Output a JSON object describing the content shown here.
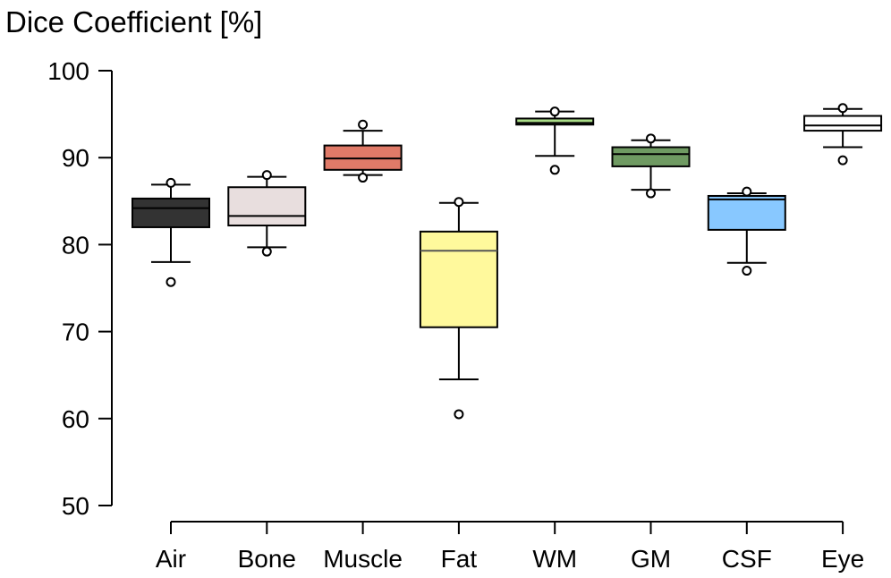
{
  "chart_data": {
    "type": "box",
    "title": "Dice Coefficient [%]",
    "xlabel": "",
    "ylabel": "",
    "ylim": [
      50,
      100
    ],
    "yticks": [
      50,
      60,
      70,
      80,
      90,
      100
    ],
    "grid": false,
    "legend": "none",
    "categories": [
      "Air",
      "Bone",
      "Muscle",
      "Fat",
      "WM",
      "GM",
      "CSF",
      "Eye"
    ],
    "boxes": [
      {
        "label": "Air",
        "color": "#333333",
        "median_color": "#000000",
        "whisker_low": 78.0,
        "q1": 82.0,
        "median": 84.2,
        "q3": 85.3,
        "whisker_high": 86.9,
        "outliers": [
          75.7,
          87.1
        ]
      },
      {
        "label": "Bone",
        "color": "#e8dede",
        "median_color": "#000000",
        "whisker_low": 79.7,
        "q1": 82.2,
        "median": 83.3,
        "q3": 86.6,
        "whisker_high": 87.8,
        "outliers": [
          79.2,
          88.0
        ]
      },
      {
        "label": "Muscle",
        "color": "#e07a68",
        "median_color": "#000000",
        "whisker_low": 88.0,
        "q1": 88.6,
        "median": 89.9,
        "q3": 91.4,
        "whisker_high": 93.1,
        "outliers": [
          87.7,
          93.8
        ]
      },
      {
        "label": "Fat",
        "color": "#fff99c",
        "median_color": "#555555",
        "whisker_low": 64.5,
        "q1": 70.5,
        "median": 79.3,
        "q3": 81.5,
        "whisker_high": 84.8,
        "outliers": [
          60.5,
          84.9
        ]
      },
      {
        "label": "WM",
        "color": "#aadd88",
        "median_color": "#000000",
        "whisker_low": 90.2,
        "q1": 93.8,
        "median": 94.0,
        "q3": 94.5,
        "whisker_high": 95.3,
        "outliers": [
          88.6,
          95.3
        ]
      },
      {
        "label": "GM",
        "color": "#6f9a62",
        "median_color": "#000000",
        "whisker_low": 86.3,
        "q1": 89.0,
        "median": 90.4,
        "q3": 91.2,
        "whisker_high": 92.0,
        "outliers": [
          85.9,
          92.2
        ]
      },
      {
        "label": "CSF",
        "color": "#88c8ff",
        "median_color": "#000000",
        "whisker_low": 77.9,
        "q1": 81.7,
        "median": 85.2,
        "q3": 85.6,
        "whisker_high": 85.9,
        "outliers": [
          77.0,
          86.1
        ]
      },
      {
        "label": "Eye",
        "color": "#ffffff",
        "median_color": "#000000",
        "whisker_low": 91.2,
        "q1": 93.1,
        "median": 93.7,
        "q3": 94.8,
        "whisker_high": 95.6,
        "outliers": [
          89.7,
          95.7
        ]
      }
    ]
  }
}
